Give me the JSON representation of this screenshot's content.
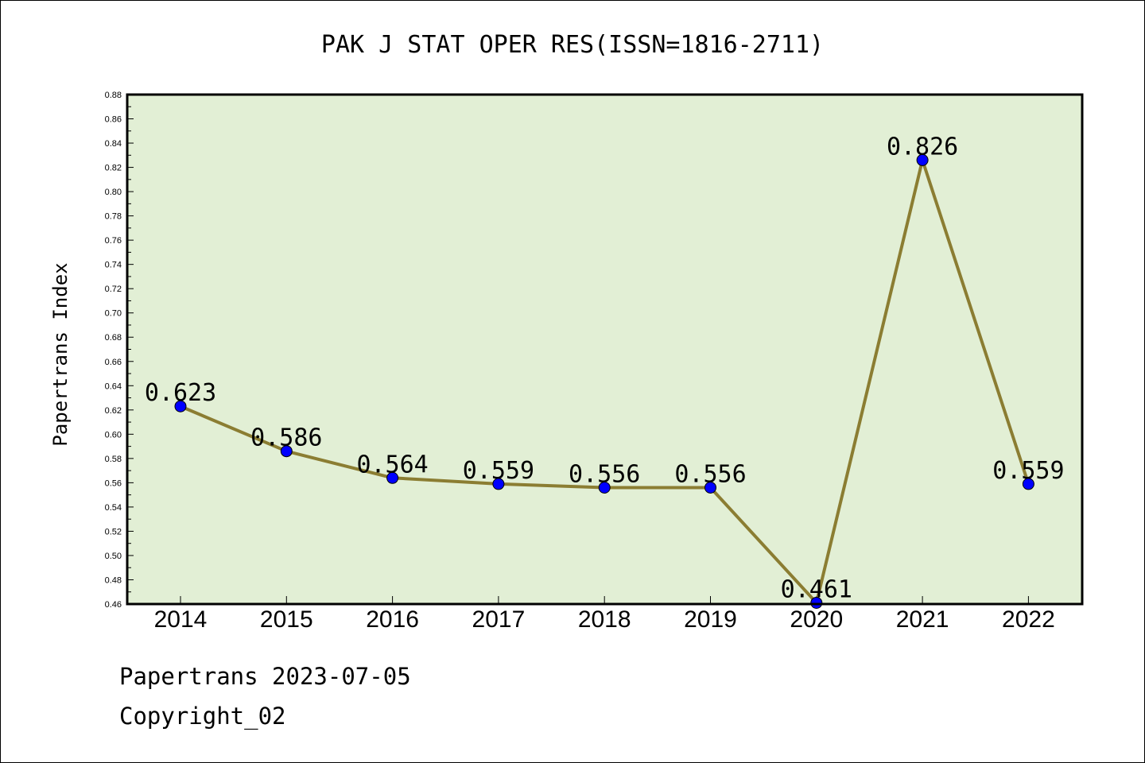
{
  "chart_data": {
    "type": "line",
    "title": "PAK J STAT OPER RES(ISSN=1816-2711)",
    "xlabel": "",
    "ylabel": "Papertrans Index",
    "categories": [
      "2014",
      "2015",
      "2016",
      "2017",
      "2018",
      "2019",
      "2020",
      "2021",
      "2022"
    ],
    "series": [
      {
        "values": [
          0.623,
          0.586,
          0.564,
          0.559,
          0.556,
          0.556,
          0.461,
          0.826,
          0.559
        ],
        "labels": [
          "0.623",
          "0.586",
          "0.564",
          "0.559",
          "0.556",
          "0.556",
          "0.461",
          "0.826",
          "0.559"
        ],
        "line_color": "#8B7D32",
        "marker_color": "#0000FF"
      }
    ],
    "ylim": [
      0.46,
      0.88
    ],
    "yticks": [
      "0.46",
      "0.48",
      "0.50",
      "0.52",
      "0.54",
      "0.56",
      "0.58",
      "0.60",
      "0.62",
      "0.64",
      "0.66",
      "0.68",
      "0.70",
      "0.72",
      "0.74",
      "0.76",
      "0.78",
      "0.80",
      "0.82",
      "0.84",
      "0.86",
      "0.88"
    ],
    "plot_background": "#E2EFD5",
    "grid": false,
    "legend": "none"
  },
  "footer": {
    "line1": "Papertrans 2023-07-05",
    "line2": "Copyright_02"
  }
}
